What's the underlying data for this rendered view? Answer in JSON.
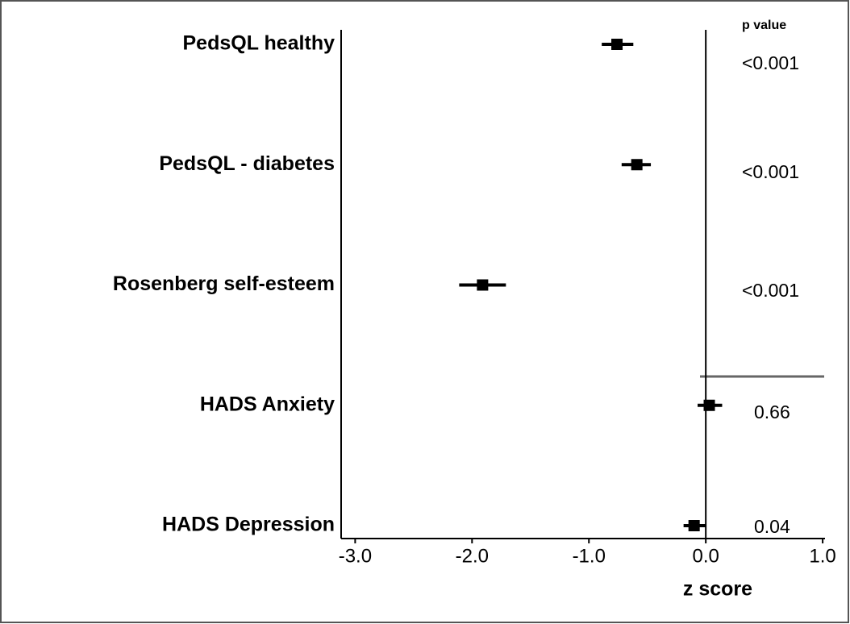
{
  "chart_data": {
    "type": "forest",
    "categories": [
      "PedsQL healthy",
      "PedsQL - diabetes",
      "Rosenberg self-esteem",
      "HADS Anxiety",
      "HADS Depression"
    ],
    "values": [
      -0.76,
      -0.59,
      -1.91,
      0.03,
      -0.1
    ],
    "ci_low": [
      -0.89,
      -0.72,
      -2.11,
      -0.07,
      -0.19
    ],
    "ci_high": [
      -0.62,
      -0.47,
      -1.71,
      0.14,
      0.0
    ],
    "p_value_header": "p value",
    "p_values": [
      "<0.001",
      "<0.001",
      "<0.001",
      "0.66",
      "0.04"
    ],
    "xlabel": "z score",
    "xlim": [
      -3.12,
      1.02
    ],
    "xticks": [
      {
        "value": -3,
        "label": "-3.0"
      },
      {
        "value": -2,
        "label": "-2.0"
      },
      {
        "value": -1,
        "label": "-1.0"
      },
      {
        "value": 0,
        "label": "0.0"
      },
      {
        "value": 1,
        "label": "1.0"
      }
    ],
    "color": "#000000"
  }
}
